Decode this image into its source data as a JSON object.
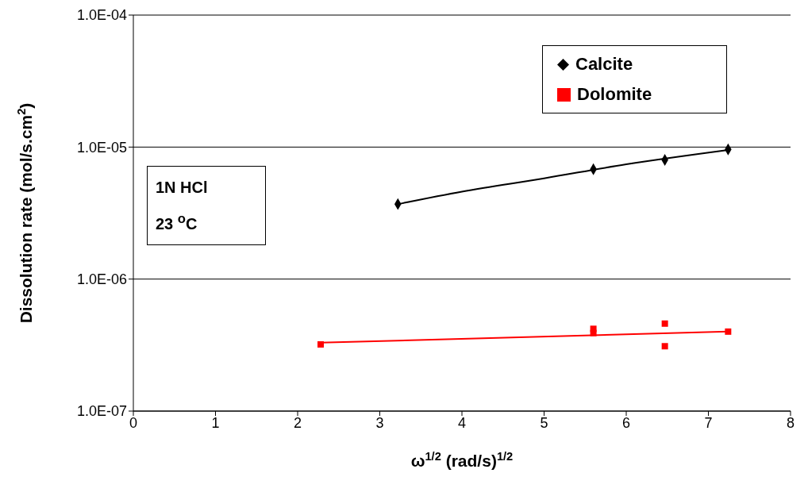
{
  "chart_data": {
    "type": "scatter",
    "xlabel": "ω$^{1/2}$  (rad/s)$^{1/2}$",
    "ylabel": "Dissolution rate (mol/s.cm$^{2}$)",
    "log": "y",
    "xlim": [
      0,
      8
    ],
    "xticks": [
      0,
      1,
      2,
      3,
      4,
      5,
      6,
      7,
      8
    ],
    "ylim": [
      1e-07,
      0.0001
    ],
    "yticks": [
      {
        "value": 1e-07,
        "label": "1.0E-07"
      },
      {
        "value": 1e-06,
        "label": "1.0E-06"
      },
      {
        "value": 1e-05,
        "label": "1.0E-05"
      },
      {
        "value": 0.0001,
        "label": "1.0E-04"
      }
    ],
    "grid": "y",
    "legend": "top right",
    "annotations": [
      "1N HCl",
      "23 $^{o}$C"
    ],
    "series": [
      {
        "name": "Calcite",
        "marker": "diamond",
        "color": "#000000",
        "x": [
          3.22,
          5.6,
          6.47,
          7.24
        ],
        "values": [
          3.7e-06,
          6.8e-06,
          8e-06,
          9.6e-06
        ]
      },
      {
        "name": "Dolomite",
        "marker": "square",
        "color": "#ff0000",
        "x": [
          2.28,
          5.6,
          5.6,
          6.47,
          6.47,
          7.24
        ],
        "values": [
          3.2e-07,
          4.2e-07,
          3.9e-07,
          4.6e-07,
          3.1e-07,
          4e-07
        ]
      },
      {
        "type": "line",
        "marker": "none",
        "color": "#000000",
        "x": [
          3.22,
          4,
          5,
          6,
          7.24
        ],
        "values": [
          3.7e-06,
          4.6e-06,
          5.8e-06,
          7.4e-06,
          9.5e-06
        ]
      },
      {
        "type": "line",
        "marker": "none",
        "color": "#ff0000",
        "x": [
          2.28,
          7.24
        ],
        "values": [
          3.3e-07,
          4e-07
        ]
      }
    ]
  }
}
